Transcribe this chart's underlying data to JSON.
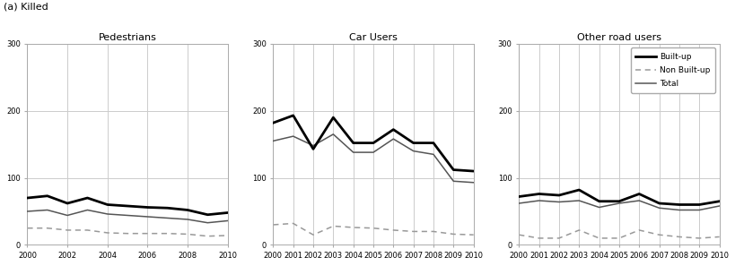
{
  "years": [
    2000,
    2001,
    2002,
    2003,
    2004,
    2005,
    2006,
    2007,
    2008,
    2009,
    2010
  ],
  "pedestrians": {
    "title": "Pedestrians",
    "xticks": [
      2000,
      2002,
      2004,
      2006,
      2008,
      2010
    ],
    "total": [
      70,
      73,
      62,
      70,
      60,
      58,
      56,
      55,
      52,
      45,
      48
    ],
    "built_up": [
      50,
      52,
      44,
      52,
      46,
      44,
      42,
      40,
      38,
      33,
      36
    ],
    "non_built": [
      25,
      25,
      22,
      22,
      18,
      17,
      17,
      17,
      16,
      13,
      14
    ]
  },
  "car_users": {
    "title": "Car Users",
    "xticks": [
      2000,
      2001,
      2002,
      2003,
      2004,
      2005,
      2006,
      2007,
      2008,
      2009,
      2010
    ],
    "total": [
      182,
      193,
      143,
      190,
      152,
      152,
      172,
      152,
      152,
      112,
      110
    ],
    "built_up": [
      155,
      162,
      148,
      165,
      138,
      138,
      158,
      140,
      135,
      95,
      93
    ],
    "non_built": [
      30,
      32,
      15,
      28,
      26,
      25,
      22,
      20,
      20,
      16,
      15
    ]
  },
  "other_users": {
    "title": "Other road users",
    "xticks": [
      2000,
      2001,
      2002,
      2003,
      2004,
      2005,
      2006,
      2007,
      2008,
      2009,
      2010
    ],
    "total": [
      72,
      76,
      74,
      82,
      65,
      65,
      76,
      62,
      60,
      60,
      65
    ],
    "built_up": [
      62,
      66,
      64,
      66,
      56,
      62,
      66,
      55,
      52,
      52,
      58
    ],
    "non_built": [
      15,
      10,
      10,
      22,
      10,
      10,
      22,
      15,
      12,
      10,
      12
    ]
  },
  "suptitle": "(a) Killed",
  "ylim": [
    0,
    300
  ],
  "yticks": [
    0,
    100,
    200,
    300
  ],
  "color_total": "#000000",
  "color_builtup": "#555555",
  "color_nonbuilt": "#999999",
  "lw_total": 2.0,
  "lw_builtup": 1.1,
  "lw_nonbuilt": 1.1,
  "legend_labels": [
    "Built-up",
    "Non Built-up",
    "Total"
  ],
  "grid_color": "#cccccc",
  "fig_width": 8.19,
  "fig_height": 2.97,
  "dpi": 100
}
